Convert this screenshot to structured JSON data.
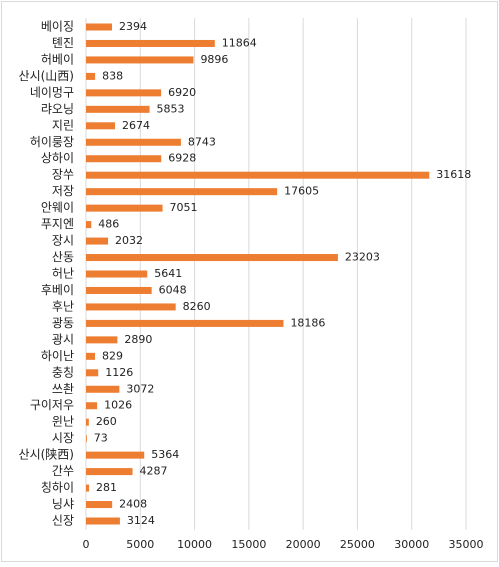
{
  "chart_data": {
    "type": "bar",
    "orientation": "horizontal",
    "categories": [
      "베이징",
      "톈진",
      "허베이",
      "산시(山西)",
      "네이멍구",
      "랴오닝",
      "지린",
      "허이룽장",
      "상하이",
      "장쑤",
      "저장",
      "안웨이",
      "푸지엔",
      "장시",
      "산동",
      "허난",
      "후베이",
      "후난",
      "광동",
      "광시",
      "하이난",
      "충칭",
      "쓰촨",
      "구이저우",
      "윈난",
      "시장",
      "산시(陕西)",
      "간쑤",
      "칭하이",
      "닝샤",
      "신장"
    ],
    "values": [
      2394,
      11864,
      9896,
      838,
      6920,
      5853,
      2674,
      8743,
      6928,
      31618,
      17605,
      7051,
      486,
      2032,
      23203,
      5641,
      6048,
      8260,
      18186,
      2890,
      829,
      1126,
      3072,
      1026,
      260,
      73,
      5364,
      4287,
      281,
      2408,
      3124
    ],
    "color": "#ed7d31",
    "xlim": [
      0,
      35000
    ],
    "xticks": [
      0,
      5000,
      10000,
      15000,
      20000,
      25000,
      30000,
      35000
    ],
    "grid": true
  }
}
